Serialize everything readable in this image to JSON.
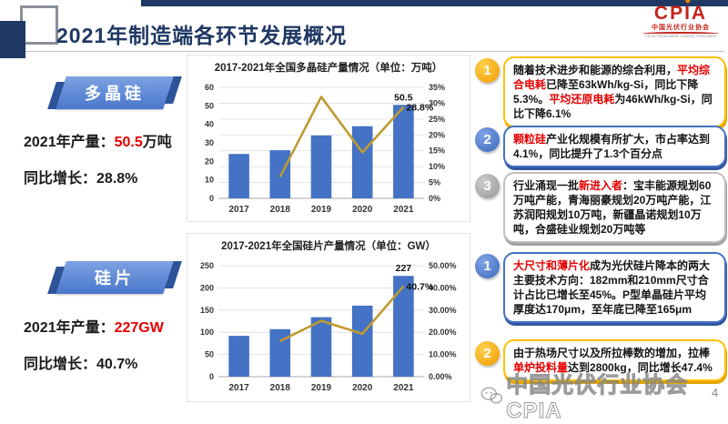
{
  "header": {
    "title": "2021年制造端各环节发展概况"
  },
  "logo": {
    "name": "CPIA",
    "cn": "中国光伏行业协会",
    "en": "China Photovoltaic Industry Association"
  },
  "icons": {
    "cpia_sunburst": "✸"
  },
  "colors": {
    "navy": "#1f3864",
    "bar_blue": "#4472c4",
    "line_gold": "#bf9b30",
    "accent_red": "#e60000",
    "gold_border": "#ffc000",
    "gray_border": "#bfbfbf",
    "logo_red": "#c5231c"
  },
  "sections": [
    {
      "banner": "多晶硅",
      "stats": [
        {
          "label": "2021年产量：",
          "value": "50.5",
          "unit": "万吨"
        },
        {
          "label": "同比增长：",
          "value": "28.8%",
          "unit": ""
        }
      ]
    },
    {
      "banner": "硅片",
      "stats": [
        {
          "label": "2021年产量：",
          "value": "227GW",
          "unit": ""
        },
        {
          "label": "同比增长：",
          "value": "40.7%",
          "unit": ""
        }
      ]
    }
  ],
  "points": [
    {
      "num": "1",
      "theme": "gold",
      "segments": [
        {
          "t": "随着技术进步和能源的综合利用，"
        },
        {
          "t": "平均综合电耗",
          "red": true
        },
        {
          "t": "已降至63kWh/kg-Si，同比下降5.3%。"
        },
        {
          "t": "平均还原电耗",
          "red": true
        },
        {
          "t": "为46kWh/kg-Si，同比下降6.1%"
        }
      ]
    },
    {
      "num": "2",
      "theme": "blue",
      "segments": [
        {
          "t": "颗粒硅",
          "red": true
        },
        {
          "t": "产业化规模有所扩大，市占率达到4.1%，同比提升了1.3个百分点"
        }
      ]
    },
    {
      "num": "3",
      "theme": "gray",
      "segments": [
        {
          "t": "行业涌现一批"
        },
        {
          "t": "新进入者",
          "red": true
        },
        {
          "t": "：宝丰能源规划60万吨产能，青海丽豪规划20万吨产能，江苏润阳规划10万吨，新疆晶诺规划10万吨，合盛硅业规划20万吨等"
        }
      ]
    },
    {
      "num": "1",
      "theme": "blue",
      "segments": [
        {
          "t": "大尺寸和薄片化",
          "red": true
        },
        {
          "t": "成为光伏硅片降本的两大主要技术方向：182mm和210mm尺寸合计占比已增长至45%。P型单晶硅片平均厚度达170μm，至年底已降至165μm"
        }
      ]
    },
    {
      "num": "2",
      "theme": "gold",
      "segments": [
        {
          "t": "由于热场尺寸以及所拉棒数的增加，拉棒"
        },
        {
          "t": "单炉投料量",
          "red": true
        },
        {
          "t": "达到2800kg，同比增长47.4%"
        }
      ]
    }
  ],
  "chart_data": [
    {
      "type": "bar",
      "title": "2017-2021年全国多晶硅产量情况（单位：万吨）",
      "categories": [
        "2017",
        "2018",
        "2019",
        "2020",
        "2021"
      ],
      "series": [
        {
          "name": "产量（万吨）",
          "type": "bar",
          "axis": "left",
          "color": "#4472c4",
          "values": [
            24,
            26,
            34,
            39,
            50.5
          ]
        },
        {
          "name": "同比增长",
          "type": "line",
          "axis": "right",
          "color": "#bf9b30",
          "values": [
            null,
            6.8,
            32,
            14.5,
            28.8
          ]
        }
      ],
      "left_axis": {
        "min": 0,
        "max": 60,
        "step": 10,
        "suffix": ""
      },
      "right_axis": {
        "min": 0,
        "max": 35,
        "step": 5,
        "suffix": "%"
      },
      "grid": true,
      "legend": false,
      "labels": [
        {
          "type": "bar",
          "index": 4,
          "text": "50.5"
        },
        {
          "type": "line",
          "index": 4,
          "text": "28.8%"
        }
      ]
    },
    {
      "type": "bar",
      "title": "2017-2021年全国硅片产量情况（单位：GW）",
      "categories": [
        "2017",
        "2018",
        "2019",
        "2020",
        "2021"
      ],
      "series": [
        {
          "name": "产量（GW）",
          "type": "bar",
          "axis": "left",
          "color": "#4472c4",
          "values": [
            92,
            107,
            134,
            160,
            227
          ]
        },
        {
          "name": "同比增长",
          "type": "line",
          "axis": "right",
          "color": "#bf9b30",
          "values": [
            null,
            16,
            25.2,
            19.3,
            40.7
          ]
        }
      ],
      "left_axis": {
        "min": 0,
        "max": 250,
        "step": 50,
        "suffix": ""
      },
      "right_axis": {
        "min": 0,
        "max": 50,
        "step": 10,
        "suffix": ".00%"
      },
      "grid": true,
      "legend": false,
      "labels": [
        {
          "type": "bar",
          "index": 4,
          "text": "227"
        },
        {
          "type": "line",
          "index": 4,
          "text": "40.7%"
        }
      ]
    }
  ],
  "footer": {
    "watermark": "中国光伏行业协会CPIA",
    "page": "4"
  }
}
